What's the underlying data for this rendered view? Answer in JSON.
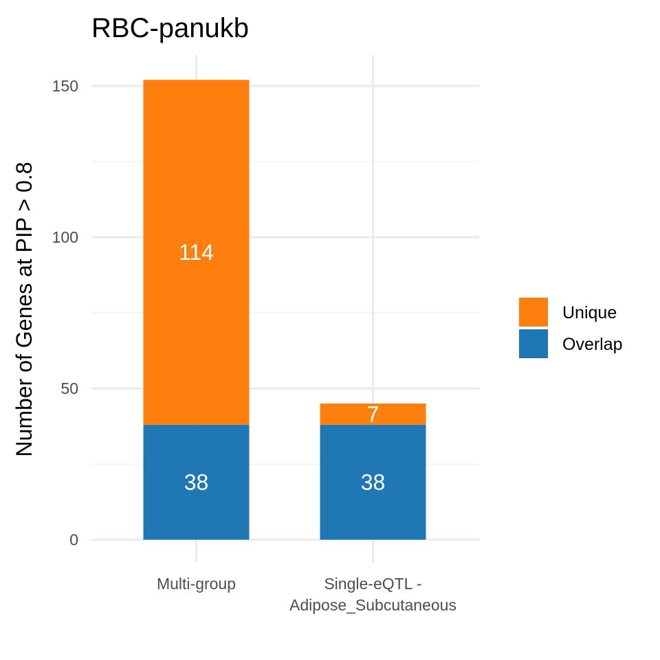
{
  "chart_data": {
    "type": "bar",
    "stacked": true,
    "title": "RBC-panukb",
    "xlabel": "",
    "ylabel": "Number of Genes at PIP > 0.8",
    "categories": [
      [
        "Multi-group"
      ],
      [
        "Single-eQTL -",
        "Adipose_Subcutaneous"
      ]
    ],
    "series": [
      {
        "name": "Overlap",
        "color": "#1f77b4",
        "values": [
          38,
          38
        ]
      },
      {
        "name": "Unique",
        "color": "#ff7f0e",
        "values": [
          114,
          7
        ]
      }
    ],
    "legend_order": [
      "Unique",
      "Overlap"
    ],
    "legend_position": "right",
    "ylim": [
      0,
      160
    ],
    "yticks": [
      0,
      50,
      100,
      150
    ],
    "grid": true
  }
}
